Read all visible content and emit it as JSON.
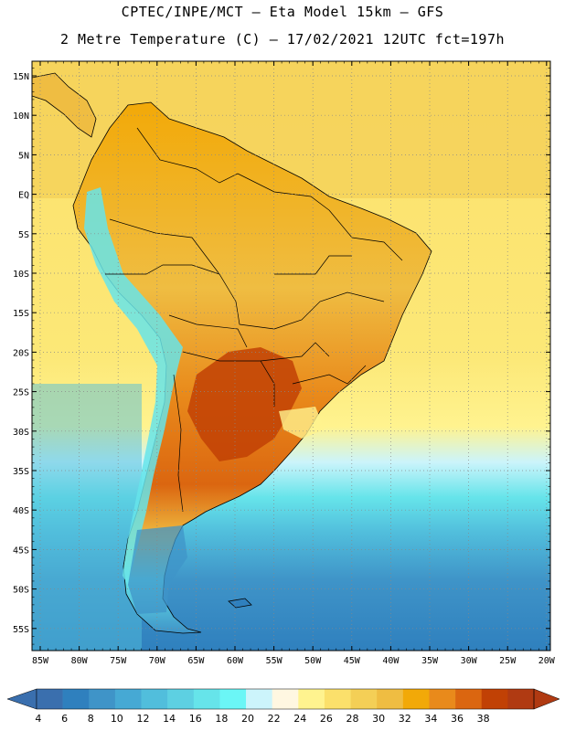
{
  "title_line1": "CPTEC/INPE/MCT –  Eta Model 15km – GFS",
  "title_line2": "2 Metre Temperature (C) – 17/02/2021 12UTC fct=197h",
  "lat_ticks": [
    "15N",
    "10N",
    "5N",
    "EQ",
    "5S",
    "10S",
    "15S",
    "20S",
    "25S",
    "30S",
    "35S",
    "40S",
    "45S",
    "50S",
    "55S"
  ],
  "lon_ticks": [
    "85W",
    "80W",
    "75W",
    "70W",
    "65W",
    "60W",
    "55W",
    "50W",
    "45W",
    "40W",
    "35W",
    "30W",
    "25W",
    "20W"
  ],
  "colorbar": {
    "labels": [
      "4",
      "6",
      "8",
      "10",
      "12",
      "14",
      "16",
      "18",
      "20",
      "22",
      "24",
      "26",
      "28",
      "30",
      "32",
      "34",
      "36",
      "38"
    ],
    "colors": [
      "#3a6fae",
      "#2f80be",
      "#3f94c8",
      "#46a9d4",
      "#51bedc",
      "#5dd0e2",
      "#66e4ea",
      "#6bf6f6",
      "#ccf4fb",
      "#fff7e1",
      "#fff38f",
      "#fbe06b",
      "#f4cf56",
      "#efbd42",
      "#f2a908",
      "#e98a1b",
      "#db6610",
      "#c14105",
      "#b03a12"
    ],
    "below_color": "#3a6fae",
    "above_color": "#b03a12"
  }
}
